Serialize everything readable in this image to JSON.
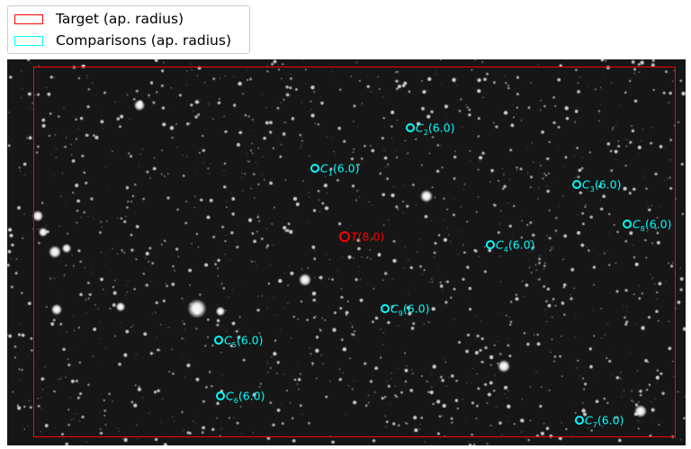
{
  "legend": {
    "items": [
      {
        "label": "Target (ap. radius)",
        "color": "#ff0000"
      },
      {
        "label": "Comparisons (ap. radius)",
        "color": "#00ffff"
      }
    ]
  },
  "target": {
    "letter": "T",
    "radius": "(8.0)",
    "color": "#ff0000"
  },
  "comparisons": [
    {
      "letter": "C",
      "index": "1",
      "radius": "(6.0)"
    },
    {
      "letter": "C",
      "index": "2",
      "radius": "(6.0)"
    },
    {
      "letter": "C",
      "index": "3",
      "radius": "(6.0)"
    },
    {
      "letter": "C",
      "index": "4",
      "radius": "(6.0)"
    },
    {
      "letter": "C",
      "index": "5",
      "radius": "(6.0)"
    },
    {
      "letter": "C",
      "index": "6",
      "radius": "(6.0)"
    },
    {
      "letter": "C",
      "index": "7",
      "radius": "(6.0)"
    },
    {
      "letter": "C",
      "index": "8",
      "radius": "(6.0)"
    },
    {
      "letter": "C",
      "index": "9",
      "radius": "(6.0)"
    }
  ],
  "comparison_color": "#00ffff"
}
